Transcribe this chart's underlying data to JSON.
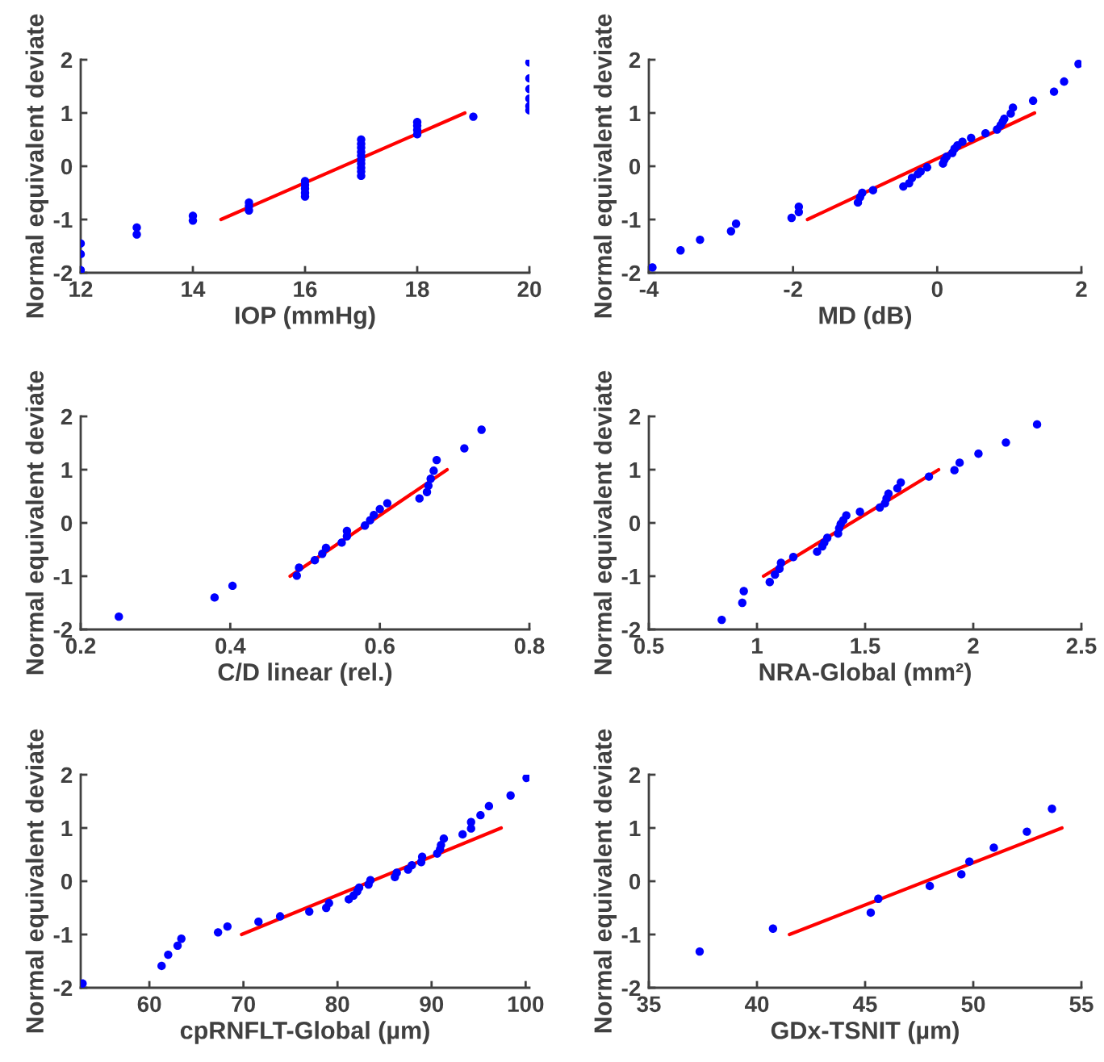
{
  "chart_data": [
    {
      "type": "scatter",
      "xlabel": "IOP (mmHg)",
      "ylabel": "Normal equivalent deviate",
      "xlim": [
        12,
        20
      ],
      "xticks": [
        12,
        14,
        16,
        18,
        20
      ],
      "ylim": [
        -2,
        2
      ],
      "yticks": [
        -2,
        -1,
        0,
        1,
        2
      ],
      "grid": false,
      "legend": false,
      "series": [
        {
          "marker": "circle",
          "color": "#0000ff",
          "x": [
            12,
            12,
            12,
            13,
            13,
            14,
            14,
            15,
            15,
            15,
            16,
            16,
            16,
            16,
            16,
            17,
            17,
            17,
            17,
            17,
            17,
            17,
            17,
            17,
            17,
            18,
            18,
            18,
            18,
            19,
            20,
            20,
            20,
            20,
            20,
            20
          ],
          "values": [
            -1.95,
            -1.65,
            -1.45,
            -1.15,
            -1.28,
            -0.93,
            -1.02,
            -0.68,
            -0.75,
            -0.83,
            -0.28,
            -0.35,
            -0.42,
            -0.5,
            -0.57,
            -0.18,
            -0.1,
            -0.03,
            0.05,
            0.12,
            0.2,
            0.27,
            0.35,
            0.42,
            0.5,
            0.6,
            0.68,
            0.76,
            0.83,
            0.93,
            1.05,
            1.13,
            1.27,
            1.45,
            1.65,
            1.95
          ]
        },
        {
          "type": "line",
          "line_style": "solid",
          "color": "#ff0000",
          "x": [
            14.5,
            18.85
          ],
          "values": [
            -1,
            1
          ]
        }
      ]
    },
    {
      "type": "scatter",
      "xlabel": "MD (dB)",
      "ylabel": "Normal equivalent deviate",
      "xlim": [
        -4,
        2
      ],
      "xticks": [
        -4,
        -2,
        0,
        2
      ],
      "ylim": [
        -2,
        2
      ],
      "yticks": [
        -2,
        -1,
        0,
        1,
        2
      ],
      "grid": false,
      "legend": false,
      "series": [
        {
          "marker": "circle",
          "color": "#0000ff",
          "x": [
            -3.95,
            -3.56,
            -3.29,
            -2.86,
            -2.79,
            -2.02,
            -1.92,
            -1.92,
            -1.1,
            -1.07,
            -1.04,
            -0.89,
            -0.47,
            -0.39,
            -0.35,
            -0.27,
            -0.23,
            -0.14,
            0.08,
            0.1,
            0.13,
            0.21,
            0.24,
            0.28,
            0.35,
            0.47,
            0.67,
            0.83,
            0.88,
            0.91,
            0.93,
            1.02,
            1.05,
            1.33,
            1.62,
            1.76,
            1.96
          ],
          "values": [
            -1.9,
            -1.58,
            -1.38,
            -1.22,
            -1.08,
            -0.97,
            -0.86,
            -0.76,
            -0.68,
            -0.58,
            -0.5,
            -0.45,
            -0.38,
            -0.32,
            -0.22,
            -0.15,
            -0.1,
            -0.02,
            0.05,
            0.12,
            0.18,
            0.25,
            0.33,
            0.39,
            0.46,
            0.53,
            0.62,
            0.69,
            0.77,
            0.84,
            0.89,
            0.99,
            1.1,
            1.23,
            1.4,
            1.59,
            1.92
          ]
        },
        {
          "type": "line",
          "line_style": "solid",
          "color": "#ff0000",
          "x": [
            -1.8,
            1.35
          ],
          "values": [
            -1,
            1
          ]
        }
      ]
    },
    {
      "type": "scatter",
      "xlabel": "C/D linear (rel.)",
      "ylabel": "Normal equivalent deviate",
      "xlim": [
        0.2,
        0.8
      ],
      "xticks": [
        0.2,
        0.4,
        0.6,
        0.8
      ],
      "ylim": [
        -2,
        2
      ],
      "yticks": [
        -2,
        -1,
        0,
        1,
        2
      ],
      "grid": false,
      "legend": false,
      "series": [
        {
          "marker": "circle",
          "color": "#0000ff",
          "x": [
            0.251,
            0.379,
            0.403,
            0.489,
            0.492,
            0.513,
            0.523,
            0.528,
            0.549,
            0.556,
            0.556,
            0.58,
            0.587,
            0.592,
            0.6,
            0.61,
            0.653,
            0.663,
            0.665,
            0.668,
            0.672,
            0.676,
            0.713,
            0.736
          ],
          "values": [
            -1.76,
            -1.4,
            -1.18,
            -0.99,
            -0.84,
            -0.7,
            -0.58,
            -0.47,
            -0.37,
            -0.25,
            -0.15,
            -0.05,
            0.05,
            0.15,
            0.26,
            0.37,
            0.46,
            0.58,
            0.7,
            0.83,
            0.98,
            1.18,
            1.4,
            1.75
          ]
        },
        {
          "type": "line",
          "line_style": "solid",
          "color": "#ff0000",
          "x": [
            0.48,
            0.69
          ],
          "values": [
            -1,
            1
          ]
        }
      ]
    },
    {
      "type": "scatter",
      "xlabel": "NRA-Global (mm²)",
      "ylabel": "Normal equivalent deviate",
      "xlim": [
        0.5,
        2.5
      ],
      "xticks": [
        0.5,
        1,
        1.5,
        2,
        2.5
      ],
      "ylim": [
        -2,
        2
      ],
      "yticks": [
        -2,
        -1,
        0,
        1,
        2
      ],
      "grid": false,
      "legend": false,
      "series": [
        {
          "marker": "circle",
          "color": "#0000ff",
          "x": [
            0.837,
            0.932,
            0.939,
            1.059,
            1.083,
            1.104,
            1.111,
            1.168,
            1.278,
            1.302,
            1.311,
            1.325,
            1.375,
            1.38,
            1.387,
            1.399,
            1.413,
            1.476,
            1.568,
            1.592,
            1.599,
            1.608,
            1.649,
            1.665,
            1.795,
            1.913,
            1.937,
            2.024,
            2.151,
            2.295
          ],
          "values": [
            -1.82,
            -1.5,
            -1.28,
            -1.11,
            -0.97,
            -0.86,
            -0.75,
            -0.64,
            -0.54,
            -0.44,
            -0.37,
            -0.28,
            -0.2,
            -0.1,
            -0.02,
            0.05,
            0.14,
            0.21,
            0.29,
            0.37,
            0.46,
            0.55,
            0.65,
            0.76,
            0.87,
            0.99,
            1.13,
            1.3,
            1.51,
            1.85
          ]
        },
        {
          "type": "line",
          "line_style": "solid",
          "color": "#ff0000",
          "x": [
            1.03,
            1.84
          ],
          "values": [
            -1,
            1
          ]
        }
      ]
    },
    {
      "type": "scatter",
      "xlabel": "cpRNFLT-Global (µm)",
      "ylabel": "Normal equivalent deviate",
      "xlim": [
        52.7,
        100.4
      ],
      "xticks": [
        60,
        70,
        80,
        90,
        100
      ],
      "ylim": [
        -2,
        2
      ],
      "yticks": [
        -2,
        -1,
        0,
        1,
        2
      ],
      "grid": false,
      "legend": false,
      "series": [
        {
          "marker": "circle",
          "color": "#0000ff",
          "x": [
            52.9,
            61.3,
            62.0,
            63.0,
            63.4,
            67.3,
            68.3,
            71.6,
            73.9,
            77.0,
            78.8,
            79.1,
            81.2,
            81.7,
            82.1,
            82.3,
            83.3,
            83.5,
            86.1,
            86.3,
            87.5,
            87.9,
            88.9,
            89.0,
            90.6,
            90.9,
            91.0,
            91.3,
            93.3,
            94.2,
            94.2,
            95.2,
            96.1,
            98.4,
            100.1
          ],
          "values": [
            -1.92,
            -1.59,
            -1.38,
            -1.21,
            -1.08,
            -0.96,
            -0.85,
            -0.76,
            -0.66,
            -0.57,
            -0.5,
            -0.41,
            -0.34,
            -0.27,
            -0.19,
            -0.12,
            -0.06,
            0.02,
            0.08,
            0.16,
            0.22,
            0.3,
            0.36,
            0.46,
            0.52,
            0.6,
            0.68,
            0.8,
            0.88,
            0.99,
            1.11,
            1.24,
            1.41,
            1.61,
            1.94
          ]
        },
        {
          "type": "line",
          "line_style": "solid",
          "color": "#ff0000",
          "x": [
            69.8,
            97.4
          ],
          "values": [
            -1,
            1
          ]
        }
      ]
    },
    {
      "type": "scatter",
      "xlabel": "GDx-TSNIT (µm)",
      "ylabel": "Normal equivalent deviate",
      "xlim": [
        35,
        55
      ],
      "xticks": [
        35,
        40,
        45,
        50,
        55
      ],
      "ylim": [
        -2,
        2
      ],
      "yticks": [
        -2,
        -1,
        0,
        1,
        2
      ],
      "grid": false,
      "legend": false,
      "series": [
        {
          "marker": "circle",
          "color": "#0000ff",
          "x": [
            37.35,
            40.74,
            45.26,
            45.61,
            47.99,
            49.45,
            49.82,
            50.95,
            52.48,
            53.64
          ],
          "values": [
            -1.32,
            -0.89,
            -0.59,
            -0.33,
            -0.09,
            0.13,
            0.37,
            0.63,
            0.93,
            1.36
          ]
        },
        {
          "type": "line",
          "line_style": "solid",
          "color": "#ff0000",
          "x": [
            41.5,
            54.1
          ],
          "values": [
            -1,
            1
          ]
        }
      ]
    }
  ]
}
